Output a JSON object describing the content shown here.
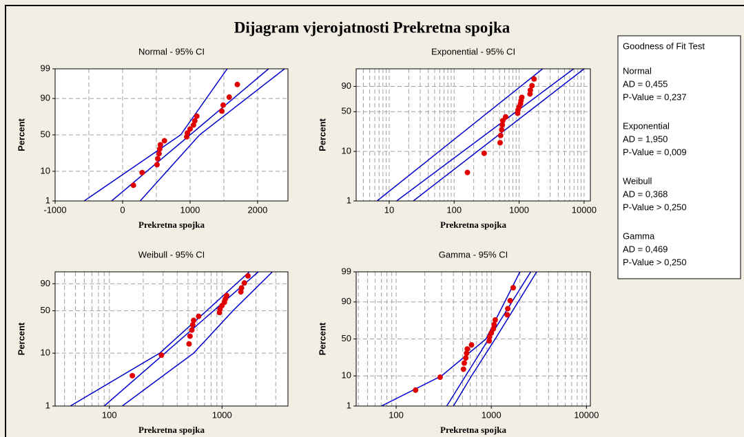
{
  "title": "Dijagram vjerojatnosti Prekretna spojka",
  "goodness_of_fit": {
    "title": "Goodness of Fit Test",
    "entries": [
      {
        "name": "Normal",
        "ad": "AD = 0,455",
        "p": "P-Value = 0,237"
      },
      {
        "name": "Exponential",
        "ad": "AD = 1,950",
        "p": "P-Value = 0,009"
      },
      {
        "name": "Weibull",
        "ad": "AD = 0,368",
        "p": "P-Value > 0,250"
      },
      {
        "name": "Gamma",
        "ad": "AD = 0,469",
        "p": "P-Value > 0,250"
      }
    ]
  },
  "chart_data": [
    {
      "type": "probability",
      "title": "Normal - 95% CI",
      "x_label": "Prekretna spojka",
      "y_label": "Percent",
      "xscale": "linear",
      "yscale": "normal",
      "xlim": [
        -1000,
        2450
      ],
      "xticks": [
        -1000,
        0,
        1000,
        2000
      ],
      "xminor": [
        -500,
        500,
        1500
      ],
      "ylim": [
        1,
        99
      ],
      "yticks": [
        1,
        10,
        50,
        90,
        99
      ],
      "grid": true,
      "point_color": "#e00000",
      "line_color": "#0000cc",
      "points": {
        "x": [
          160,
          290,
          510,
          520,
          540,
          550,
          560,
          620,
          950,
          960,
          1000,
          1050,
          1070,
          1100,
          1470,
          1490,
          1580,
          1700
        ],
        "values": [
          3.8,
          9.2,
          14.7,
          20.1,
          25.5,
          31.0,
          36.4,
          41.8,
          47.3,
          52.7,
          58.2,
          63.6,
          69.0,
          74.5,
          79.9,
          85.3,
          90.8,
          96.2
        ]
      },
      "lines": [
        {
          "x": [
            -570,
            860,
            1550
          ],
          "values": [
            1,
            50,
            99
          ]
        },
        {
          "x": [
            -163,
            2163
          ],
          "values": [
            1,
            99
          ]
        },
        {
          "x": [
            260,
            1140,
            2400
          ],
          "values": [
            1,
            50,
            99
          ]
        }
      ]
    },
    {
      "type": "probability",
      "title": "Exponential - 95% CI",
      "x_label": "Prekretna spojka",
      "y_label": "Percent",
      "xscale": "log",
      "yscale": "weibull",
      "xlim": [
        3.1,
        12500
      ],
      "xticks": [
        10,
        100,
        1000,
        10000
      ],
      "xminor": [
        4,
        5,
        6,
        7,
        8,
        9,
        20,
        30,
        40,
        50,
        60,
        70,
        80,
        90,
        200,
        300,
        400,
        500,
        600,
        700,
        800,
        900,
        2000,
        3000,
        4000,
        5000,
        6000,
        7000,
        8000,
        9000
      ],
      "ylim": [
        1,
        99.5
      ],
      "yticks": [
        1,
        10,
        50,
        90
      ],
      "grid": true,
      "point_color": "#e00000",
      "line_color": "#0000cc",
      "points": {
        "x": [
          160,
          290,
          510,
          520,
          540,
          550,
          560,
          620,
          950,
          960,
          1000,
          1050,
          1070,
          1100,
          1470,
          1490,
          1580,
          1700
        ],
        "values": [
          3.8,
          9.2,
          14.7,
          20.1,
          25.5,
          31.0,
          36.4,
          41.8,
          47.3,
          52.7,
          58.2,
          63.6,
          69.0,
          74.5,
          79.9,
          85.3,
          90.8,
          96.2
        ]
      },
      "lines": [
        {
          "x": [
            6.5,
            2300
          ],
          "values": [
            1,
            99.5
          ]
        },
        {
          "x": [
            13,
            6900
          ],
          "values": [
            1,
            99.5
          ]
        },
        {
          "x": [
            23.5,
            10000
          ],
          "values": [
            1,
            99.5
          ]
        }
      ]
    },
    {
      "type": "probability",
      "title": "Weibull - 95% CI",
      "x_label": "Prekretna spojka",
      "y_label": "Percent",
      "xscale": "log",
      "yscale": "weibull",
      "xlim": [
        33,
        3850
      ],
      "xticks": [
        100,
        1000
      ],
      "xminor": [
        40,
        50,
        60,
        70,
        80,
        90,
        200,
        300,
        400,
        500,
        600,
        700,
        800,
        900,
        2000,
        3000
      ],
      "ylim": [
        1,
        98
      ],
      "yticks": [
        1,
        10,
        50,
        90
      ],
      "grid": true,
      "point_color": "#e00000",
      "line_color": "#0000cc",
      "points": {
        "x": [
          160,
          290,
          510,
          520,
          540,
          550,
          560,
          620,
          950,
          960,
          1000,
          1050,
          1070,
          1100,
          1470,
          1490,
          1580,
          1700
        ],
        "values": [
          3.8,
          9.2,
          14.7,
          20.1,
          25.5,
          31.0,
          36.4,
          41.8,
          47.3,
          52.7,
          58.2,
          63.6,
          69.0,
          74.5,
          79.9,
          85.3,
          90.8,
          96.2
        ]
      },
      "lines": [
        {
          "x": [
            45,
            280,
            730,
            1750
          ],
          "values": [
            1,
            10,
            50,
            98
          ]
        },
        {
          "x": [
            90,
            2100
          ],
          "values": [
            1,
            98
          ]
        },
        {
          "x": [
            130,
            560,
            1250,
            2800
          ],
          "values": [
            1,
            10,
            50,
            98
          ]
        }
      ]
    },
    {
      "type": "probability",
      "title": "Gamma - 95% CI",
      "x_label": "Prekretna spojka",
      "y_label": "Percent",
      "xscale": "log",
      "yscale": "normal",
      "xlim": [
        38,
        11000
      ],
      "xticks": [
        100,
        1000,
        10000
      ],
      "xminor": [
        40,
        50,
        60,
        70,
        80,
        90,
        200,
        300,
        400,
        500,
        600,
        700,
        800,
        900,
        2000,
        3000,
        4000,
        5000,
        6000,
        7000,
        8000,
        9000
      ],
      "ylim": [
        1,
        99
      ],
      "yticks": [
        1,
        10,
        50,
        90,
        99
      ],
      "grid": true,
      "point_color": "#e00000",
      "line_color": "#0000cc",
      "points": {
        "x": [
          160,
          290,
          510,
          520,
          540,
          550,
          560,
          620,
          950,
          960,
          1000,
          1050,
          1070,
          1100,
          1470,
          1490,
          1580,
          1700
        ],
        "values": [
          3.8,
          9.2,
          14.7,
          20.1,
          25.5,
          31.0,
          36.4,
          41.8,
          47.3,
          52.7,
          58.2,
          63.6,
          69.0,
          74.5,
          79.9,
          85.3,
          90.8,
          96.2
        ]
      },
      "lines": [
        {
          "x": [
            70,
            300,
            880,
            2000
          ],
          "values": [
            1,
            10,
            50,
            99
          ]
        },
        {
          "x": [
            340,
            2600
          ],
          "values": [
            1,
            99
          ]
        },
        {
          "x": [
            400,
            620,
            1100,
            3000
          ],
          "values": [
            1,
            10,
            50,
            99
          ]
        }
      ]
    }
  ]
}
